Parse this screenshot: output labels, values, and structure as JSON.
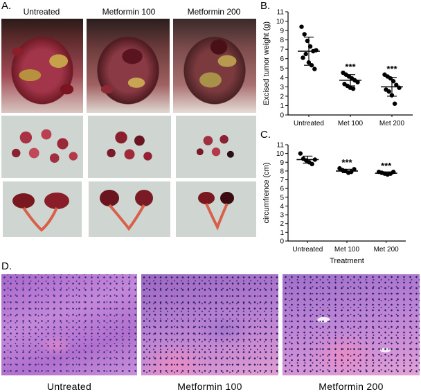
{
  "panels": {
    "a": {
      "label": "A.",
      "col_labels": [
        "Untreated",
        "Metformin 100",
        "Metformin 200"
      ]
    },
    "b": {
      "label": "B."
    },
    "c": {
      "label": "C."
    },
    "d": {
      "label": "D.",
      "captions": [
        "Untreated",
        "Metformin 100",
        "Metformin 200"
      ]
    }
  },
  "chart_data": [
    {
      "type": "scatter",
      "ylabel": "Excised tumor weight (g)",
      "xlabel": "",
      "ylim": [
        0,
        11
      ],
      "yticks": [
        0,
        1,
        2,
        3,
        4,
        5,
        6,
        7,
        8,
        9,
        10,
        11
      ],
      "categories": [
        "Untreated",
        "Met 100",
        "Met 200"
      ],
      "points": [
        [
          9.4,
          8.6,
          7.9,
          7.3,
          6.8,
          6.9,
          6.1,
          6.5,
          5.6,
          5.3,
          4.9
        ],
        [
          4.5,
          4.3,
          4.1,
          3.9,
          3.7,
          3.5,
          3.3,
          3.1,
          2.9,
          2.8
        ],
        [
          4.3,
          4.1,
          3.9,
          3.6,
          3.2,
          2.9,
          2.7,
          2.5,
          2.1,
          1.2
        ]
      ],
      "means": [
        6.8,
        3.7,
        3.0
      ],
      "sd": [
        1.5,
        0.6,
        1.0
      ],
      "significance": [
        "",
        "***",
        "***"
      ]
    },
    {
      "type": "scatter",
      "ylabel": "circumfrence (cm)",
      "xlabel": "Treatment",
      "ylim": [
        0,
        11
      ],
      "yticks": [
        0,
        1,
        2,
        3,
        4,
        5,
        6,
        7,
        8,
        9,
        10,
        11
      ],
      "categories": [
        "Untreated",
        "Met 100",
        "Met 200"
      ],
      "points": [
        [
          10.0,
          9.4,
          9.2,
          9.0,
          8.8,
          9.3
        ],
        [
          8.3,
          8.1,
          8.0,
          7.8,
          7.9,
          8.2
        ],
        [
          7.9,
          7.8,
          7.7,
          7.6,
          7.7,
          7.9
        ]
      ],
      "means": [
        9.3,
        8.0,
        7.75
      ],
      "sd": [
        0.4,
        0.2,
        0.15
      ],
      "significance": [
        "",
        "***",
        "***"
      ]
    }
  ]
}
